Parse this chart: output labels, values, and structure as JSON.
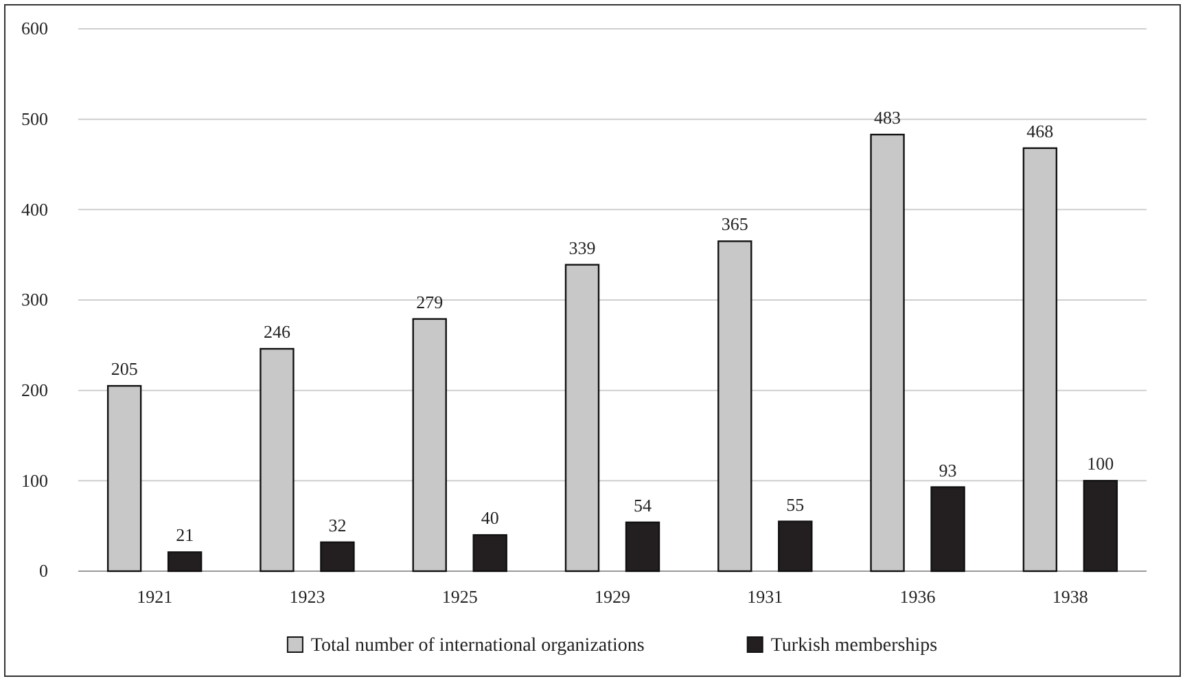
{
  "chart_data": {
    "type": "bar",
    "categories": [
      "1921",
      "1923",
      "1925",
      "1929",
      "1931",
      "1936",
      "1938"
    ],
    "series": [
      {
        "name": "Total number of international organizations",
        "color": "#c8c8c8",
        "values": [
          205,
          246,
          279,
          339,
          365,
          483,
          468
        ]
      },
      {
        "name": "Turkish memberships",
        "color": "#231f20",
        "values": [
          21,
          32,
          40,
          54,
          55,
          93,
          100
        ]
      }
    ],
    "ylim": [
      0,
      600
    ],
    "yticks": [
      0,
      100,
      200,
      300,
      400,
      500,
      600
    ],
    "grid": "y",
    "data_labels": true,
    "legend": "bottom"
  }
}
